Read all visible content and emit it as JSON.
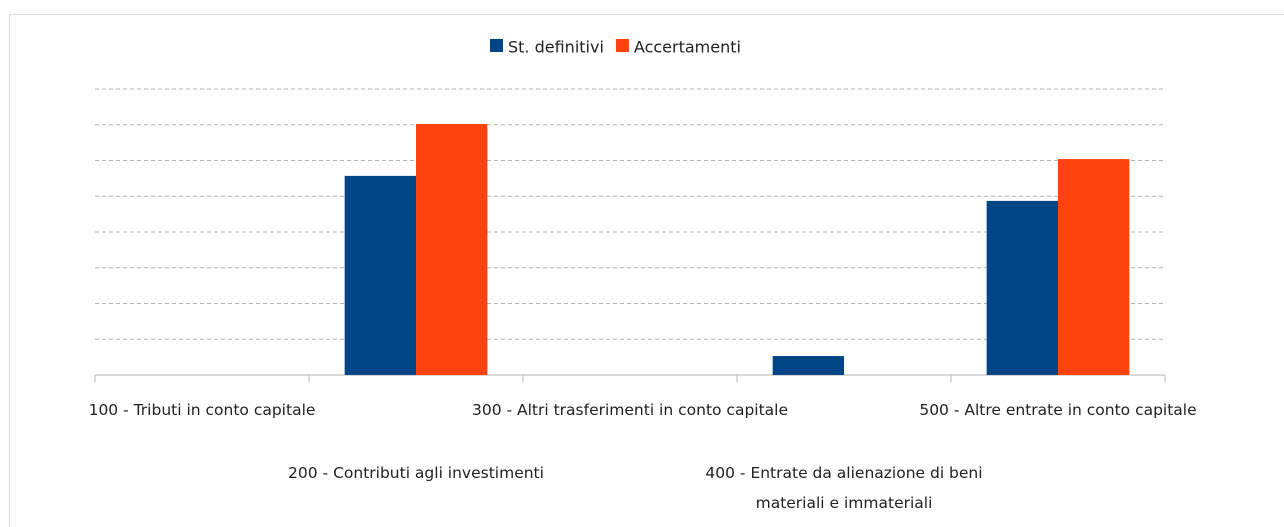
{
  "chart_data": {
    "type": "bar",
    "categories": [
      "100 - Tributi in conto capitale",
      "200 - Contributi agli investimenti",
      "300 - Altri trasferimenti in conto capitale",
      "400 - Entrate da alienazione di beni materiali e immateriali",
      "500 - Altre entrate in conto capitale"
    ],
    "series": [
      {
        "name": "St. definitivi",
        "color": "#004586",
        "values": [
          0,
          5.57,
          0,
          0.53,
          4.87
        ]
      },
      {
        "name": "Accertamenti",
        "color": "#ff420e",
        "values": [
          0,
          7.02,
          0,
          0,
          6.04
        ]
      }
    ],
    "ylim": [
      0,
      8
    ],
    "yticks": [
      1,
      2,
      3,
      4,
      5,
      6,
      7,
      8
    ],
    "grid": true,
    "legend": "top"
  }
}
